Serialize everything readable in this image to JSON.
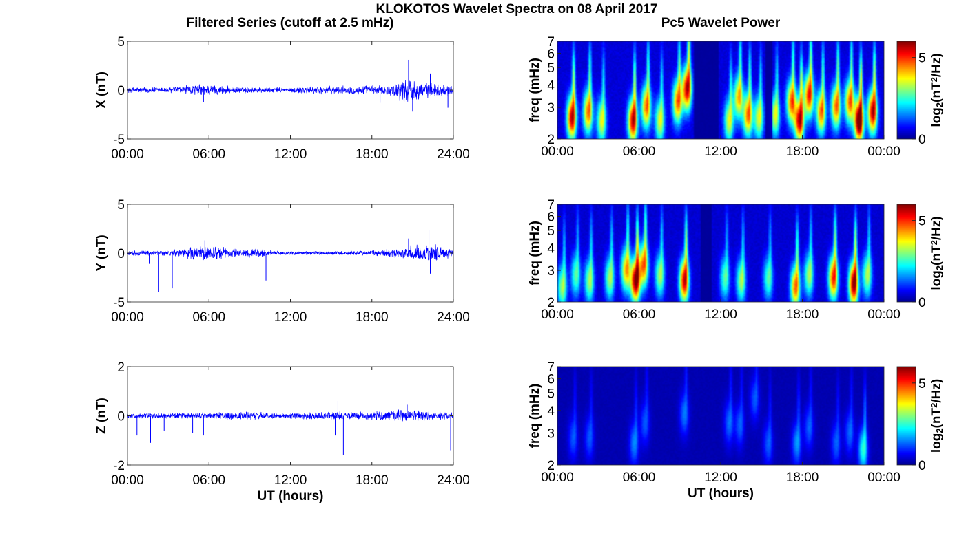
{
  "figure": {
    "title": "KLOKOTOS Wavelet Spectra on 08 April 2017",
    "left_title": "Filtered Series (cutoff at 2.5 mHz)",
    "right_title": "Pc5 Wavelet Power",
    "xlabel": "UT (hours)"
  },
  "colors": {
    "trace": "#0000ff",
    "axes": "#000000",
    "jet": [
      "#00008f",
      "#0000ff",
      "#00ffff",
      "#ffff00",
      "#ff0000",
      "#800000"
    ]
  },
  "chart_data": [
    {
      "type": "line",
      "panel": "X",
      "ylabel": "X (nT)",
      "ylim": [
        -5,
        5
      ],
      "yticks": [
        "5",
        "0",
        "-5"
      ],
      "xlim": [
        0,
        24
      ],
      "xticks": [
        "00:00",
        "06:00",
        "12:00",
        "18:00",
        "24:00"
      ],
      "noise_envelope": [
        [
          0,
          0.35
        ],
        [
          3,
          0.4
        ],
        [
          5.5,
          0.7
        ],
        [
          8,
          0.4
        ],
        [
          12,
          0.3
        ],
        [
          13,
          0.5
        ],
        [
          15,
          0.45
        ],
        [
          17,
          0.55
        ],
        [
          19,
          0.5
        ],
        [
          20.6,
          1.5
        ],
        [
          21,
          1.2
        ],
        [
          22,
          0.9
        ],
        [
          24,
          0.6
        ]
      ],
      "spikes": [
        [
          20.7,
          3.1
        ],
        [
          21.0,
          -2.2
        ],
        [
          5.6,
          -1.2
        ],
        [
          22.3,
          1.7
        ],
        [
          23.6,
          -1.8
        ],
        [
          18.6,
          -1.3
        ]
      ],
      "xlabel": ""
    },
    {
      "type": "line",
      "panel": "Y",
      "ylabel": "Y (nT)",
      "ylim": [
        -5,
        5
      ],
      "yticks": [
        "5",
        "0",
        "-5"
      ],
      "xlim": [
        0,
        24
      ],
      "xticks": [
        "00:00",
        "06:00",
        "12:00",
        "18:00",
        "24:00"
      ],
      "noise_envelope": [
        [
          0,
          0.3
        ],
        [
          3,
          0.3
        ],
        [
          5,
          0.8
        ],
        [
          6,
          0.9
        ],
        [
          8,
          0.5
        ],
        [
          10,
          0.5
        ],
        [
          11,
          0.2
        ],
        [
          16,
          0.25
        ],
        [
          18,
          0.3
        ],
        [
          20.5,
          0.7
        ],
        [
          22.3,
          1.2
        ],
        [
          24,
          0.4
        ]
      ],
      "spikes": [
        [
          2.3,
          -4.0
        ],
        [
          3.3,
          -3.6
        ],
        [
          1.6,
          -1.1
        ],
        [
          10.2,
          -2.8
        ],
        [
          5.7,
          1.3
        ],
        [
          22.2,
          2.4
        ],
        [
          22.3,
          -2.1
        ],
        [
          20.7,
          1.5
        ]
      ],
      "xlabel": ""
    },
    {
      "type": "line",
      "panel": "Z",
      "ylabel": "Z (nT)",
      "ylim": [
        -2,
        2
      ],
      "yticks": [
        "2",
        "0",
        "-2"
      ],
      "xlim": [
        0,
        24
      ],
      "xticks": [
        "00:00",
        "06:00",
        "12:00",
        "18:00",
        "24:00"
      ],
      "noise_envelope": [
        [
          0,
          0.1
        ],
        [
          5,
          0.15
        ],
        [
          9,
          0.2
        ],
        [
          11,
          0.12
        ],
        [
          15,
          0.2
        ],
        [
          18,
          0.18
        ],
        [
          20.6,
          0.3
        ],
        [
          22,
          0.2
        ],
        [
          24,
          0.15
        ]
      ],
      "spikes": [
        [
          0.7,
          -0.8
        ],
        [
          1.7,
          -1.1
        ],
        [
          2.7,
          -0.6
        ],
        [
          15.9,
          -1.6
        ],
        [
          15.5,
          0.6
        ],
        [
          23.8,
          -1.4
        ],
        [
          15.3,
          -0.8
        ],
        [
          4.8,
          -0.7
        ],
        [
          5.6,
          -0.8
        ],
        [
          20.6,
          0.45
        ]
      ],
      "xlabel": "UT (hours)"
    },
    {
      "type": "heatmap",
      "panel": "X-spectrum",
      "ylabel": "freq (mHz)",
      "ylim": [
        2,
        7
      ],
      "yscale": "log",
      "yticks": [
        "7",
        "6",
        "5",
        "4",
        "3",
        "2"
      ],
      "xlim": [
        0,
        24
      ],
      "xticks": [
        "00:00",
        "06:00",
        "12:00",
        "18:00",
        "00:00"
      ],
      "colorbar": {
        "label": "log2(nT2/Hz)",
        "range": [
          0,
          6
        ],
        "ticks": [
          "5",
          "0"
        ]
      },
      "intensity": 1.0,
      "blobs": [
        [
          1.0,
          2.6,
          5
        ],
        [
          2.2,
          2.8,
          4
        ],
        [
          3.2,
          2.5,
          3
        ],
        [
          5.5,
          2.5,
          5
        ],
        [
          6.5,
          3.0,
          4
        ],
        [
          7.5,
          2.5,
          3
        ],
        [
          8.8,
          3.2,
          4
        ],
        [
          9.5,
          3.8,
          5
        ],
        [
          12.6,
          2.5,
          3
        ],
        [
          13.3,
          3.4,
          3.5
        ],
        [
          14.0,
          2.7,
          4
        ],
        [
          14.8,
          2.6,
          3
        ],
        [
          16.0,
          2.7,
          3
        ],
        [
          17.2,
          3.2,
          4
        ],
        [
          17.8,
          2.5,
          5
        ],
        [
          18.5,
          3.5,
          4.5
        ],
        [
          19.4,
          2.8,
          4
        ],
        [
          20.5,
          3.0,
          4
        ],
        [
          21.5,
          3.2,
          4
        ],
        [
          22.2,
          2.5,
          6
        ],
        [
          23.2,
          2.8,
          5
        ]
      ],
      "gaps": [
        [
          10.0,
          11.8
        ],
        [
          15.3,
          15.8
        ]
      ],
      "xlabel": ""
    },
    {
      "type": "heatmap",
      "panel": "Y-spectrum",
      "ylabel": "freq (mHz)",
      "ylim": [
        2,
        7
      ],
      "yscale": "log",
      "yticks": [
        "7",
        "6",
        "5",
        "4",
        "3",
        "2"
      ],
      "xlim": [
        0,
        24
      ],
      "xticks": [
        "00:00",
        "06:00",
        "12:00",
        "18:00",
        "00:00"
      ],
      "colorbar": {
        "label": "log2(nT2/Hz)",
        "range": [
          0,
          6
        ],
        "ticks": [
          "5",
          "0"
        ]
      },
      "intensity": 0.9,
      "blobs": [
        [
          0.3,
          2.4,
          3
        ],
        [
          1.3,
          2.8,
          2.5
        ],
        [
          2.3,
          2.6,
          3
        ],
        [
          3.8,
          2.7,
          3
        ],
        [
          5.0,
          3.0,
          4
        ],
        [
          5.7,
          2.6,
          6
        ],
        [
          6.3,
          3.2,
          4.5
        ],
        [
          7.5,
          2.8,
          3
        ],
        [
          9.3,
          2.6,
          5.5
        ],
        [
          12.3,
          2.7,
          2.5
        ],
        [
          13.5,
          2.6,
          3
        ],
        [
          15.5,
          2.7,
          2.5
        ],
        [
          17.5,
          2.4,
          4.5
        ],
        [
          18.5,
          2.8,
          3
        ],
        [
          20.3,
          2.7,
          5
        ],
        [
          21.8,
          2.5,
          6
        ],
        [
          22.8,
          2.8,
          3
        ]
      ],
      "gaps": [
        [
          10.5,
          11.3
        ]
      ],
      "xlabel": ""
    },
    {
      "type": "heatmap",
      "panel": "Z-spectrum",
      "ylabel": "freq (mHz)",
      "ylim": [
        2,
        7
      ],
      "yscale": "log",
      "yticks": [
        "7",
        "6",
        "5",
        "4",
        "3",
        "2"
      ],
      "xlim": [
        0,
        24
      ],
      "xticks": [
        "00:00",
        "06:00",
        "12:00",
        "18:00",
        "00:00"
      ],
      "colorbar": {
        "label": "log2(nT2/Hz)",
        "range": [
          0,
          6
        ],
        "ticks": [
          "5",
          "0"
        ]
      },
      "intensity": 0.45,
      "blobs": [
        [
          1.1,
          2.8,
          2.2
        ],
        [
          2.3,
          2.8,
          2.2
        ],
        [
          5.6,
          2.6,
          2.8
        ],
        [
          6.4,
          3.4,
          2.2
        ],
        [
          9.3,
          3.8,
          2.6
        ],
        [
          12.6,
          3.4,
          2.5
        ],
        [
          13.4,
          3.3,
          2.3
        ],
        [
          14.5,
          4.6,
          2.2
        ],
        [
          15.5,
          2.6,
          2.3
        ],
        [
          17.6,
          2.6,
          3.0
        ],
        [
          18.5,
          3.2,
          2.3
        ],
        [
          20.5,
          2.6,
          2.3
        ],
        [
          21.5,
          3.0,
          2.4
        ],
        [
          22.5,
          2.4,
          4.8
        ]
      ],
      "gaps": [],
      "xlabel": "UT (hours)"
    }
  ]
}
